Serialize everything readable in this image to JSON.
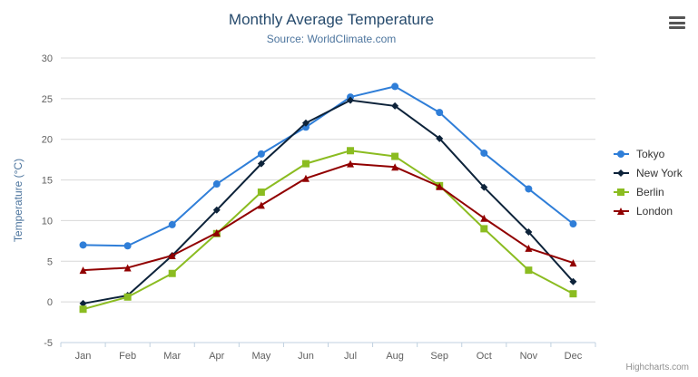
{
  "chart_data": {
    "type": "line",
    "title": "Monthly Average Temperature",
    "subtitle": "Source: WorldClimate.com",
    "xlabel": "",
    "ylabel": "Temperature (°C)",
    "ylim": [
      -5,
      30
    ],
    "ytick_step": 5,
    "yticks": [
      -5,
      0,
      5,
      10,
      15,
      20,
      25,
      30
    ],
    "grid": true,
    "legend_position": "right",
    "categories": [
      "Jan",
      "Feb",
      "Mar",
      "Apr",
      "May",
      "Jun",
      "Jul",
      "Aug",
      "Sep",
      "Oct",
      "Nov",
      "Dec"
    ],
    "series": [
      {
        "name": "Tokyo",
        "color": "#2f7ed8",
        "marker": "circle",
        "values": [
          7.0,
          6.9,
          9.5,
          14.5,
          18.2,
          21.5,
          25.2,
          26.5,
          23.3,
          18.3,
          13.9,
          9.6
        ]
      },
      {
        "name": "New York",
        "color": "#0d233a",
        "marker": "diamond",
        "values": [
          -0.2,
          0.8,
          5.7,
          11.3,
          17.0,
          22.0,
          24.8,
          24.1,
          20.1,
          14.1,
          8.6,
          2.5
        ]
      },
      {
        "name": "Berlin",
        "color": "#8bbc21",
        "marker": "square",
        "values": [
          -0.9,
          0.6,
          3.5,
          8.4,
          13.5,
          17.0,
          18.6,
          17.9,
          14.3,
          9.0,
          3.9,
          1.0
        ]
      },
      {
        "name": "London",
        "color": "#910000",
        "marker": "triangle",
        "values": [
          3.9,
          4.2,
          5.7,
          8.5,
          11.9,
          15.2,
          17.0,
          16.6,
          14.2,
          10.3,
          6.6,
          4.8
        ]
      }
    ]
  },
  "credits": "Highcharts.com",
  "colors": {
    "title": "#274b6d",
    "subtitle": "#4d759e",
    "axis_label": "#606060",
    "grid": "#d8d8d8",
    "axis_line": "#c0d0e0",
    "legend_text": "#333333",
    "credits": "#909090"
  }
}
